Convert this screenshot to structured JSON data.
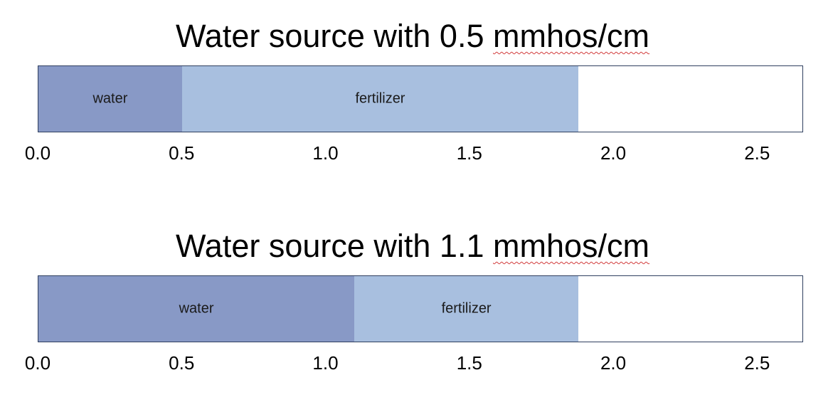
{
  "chart_data": [
    {
      "type": "bar",
      "orientation": "horizontal-stacked",
      "title_prefix": "Water source with 0.5 ",
      "title_unit": "mmhos/cm",
      "xlim": [
        0,
        2.66
      ],
      "ticks": [
        "0.0",
        "0.5",
        "1.0",
        "1.5",
        "2.0",
        "2.5"
      ],
      "tick_values": [
        0,
        0.5,
        1.0,
        1.5,
        2.0,
        2.5
      ],
      "segments": [
        {
          "name": "water",
          "start": 0,
          "end": 0.5,
          "color": "#8899c6"
        },
        {
          "name": "fertilizer",
          "start": 0.5,
          "end": 1.88,
          "color": "#a8bfdf"
        }
      ],
      "grid": false,
      "legend": "none"
    },
    {
      "type": "bar",
      "orientation": "horizontal-stacked",
      "title_prefix": "Water source with 1.1 ",
      "title_unit": "mmhos/cm",
      "xlim": [
        0,
        2.66
      ],
      "ticks": [
        "0.0",
        "0.5",
        "1.0",
        "1.5",
        "2.0",
        "2.5"
      ],
      "tick_values": [
        0,
        0.5,
        1.0,
        1.5,
        2.0,
        2.5
      ],
      "segments": [
        {
          "name": "water",
          "start": 0,
          "end": 1.1,
          "color": "#8899c6"
        },
        {
          "name": "fertilizer",
          "start": 1.1,
          "end": 1.88,
          "color": "#a8bfdf"
        }
      ],
      "grid": false,
      "legend": "none"
    }
  ]
}
